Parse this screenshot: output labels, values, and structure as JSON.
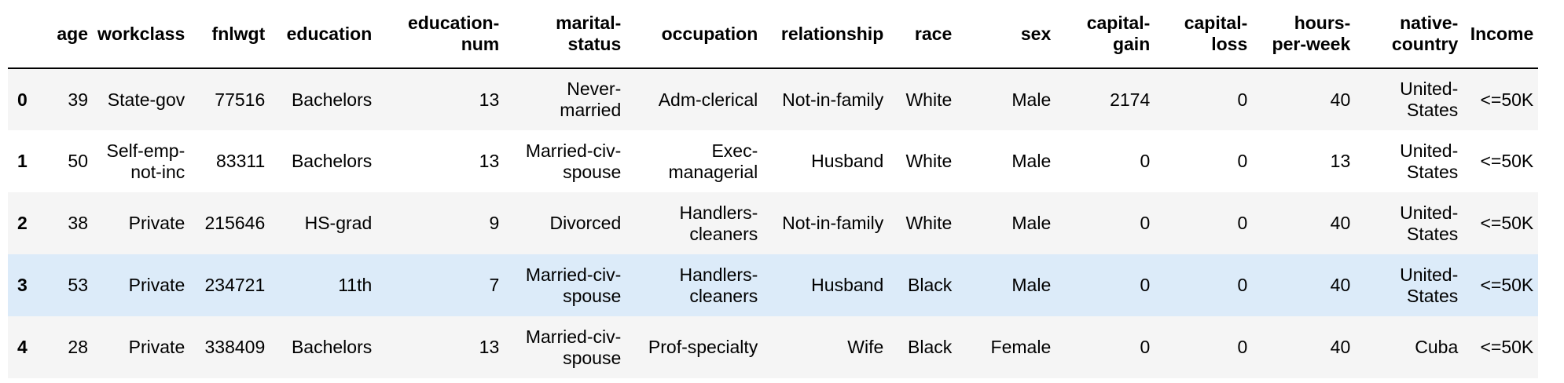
{
  "table": {
    "index_header": "",
    "columns": [
      [
        "age"
      ],
      [
        "workclass"
      ],
      [
        "fnlwgt"
      ],
      [
        "education"
      ],
      [
        "education-",
        "num"
      ],
      [
        "marital-",
        "status"
      ],
      [
        "occupation"
      ],
      [
        "relationship"
      ],
      [
        "race"
      ],
      [
        "sex"
      ],
      [
        "capital-",
        "gain"
      ],
      [
        "capital-",
        "loss"
      ],
      [
        "hours-",
        "per-week"
      ],
      [
        "native-",
        "country"
      ],
      [
        "Income"
      ]
    ],
    "rows": [
      {
        "index": "0",
        "cells": [
          [
            "39"
          ],
          [
            "State-gov"
          ],
          [
            "77516"
          ],
          [
            "Bachelors"
          ],
          [
            "13"
          ],
          [
            "Never-",
            "married"
          ],
          [
            "Adm-clerical"
          ],
          [
            "Not-in-family"
          ],
          [
            "White"
          ],
          [
            "Male"
          ],
          [
            "2174"
          ],
          [
            "0"
          ],
          [
            "40"
          ],
          [
            "United-",
            "States"
          ],
          [
            "<=50K"
          ]
        ]
      },
      {
        "index": "1",
        "cells": [
          [
            "50"
          ],
          [
            "Self-emp-",
            "not-inc"
          ],
          [
            "83311"
          ],
          [
            "Bachelors"
          ],
          [
            "13"
          ],
          [
            "Married-civ-",
            "spouse"
          ],
          [
            "Exec-",
            "managerial"
          ],
          [
            "Husband"
          ],
          [
            "White"
          ],
          [
            "Male"
          ],
          [
            "0"
          ],
          [
            "0"
          ],
          [
            "13"
          ],
          [
            "United-",
            "States"
          ],
          [
            "<=50K"
          ]
        ]
      },
      {
        "index": "2",
        "cells": [
          [
            "38"
          ],
          [
            "Private"
          ],
          [
            "215646"
          ],
          [
            "HS-grad"
          ],
          [
            "9"
          ],
          [
            "Divorced"
          ],
          [
            "Handlers-",
            "cleaners"
          ],
          [
            "Not-in-family"
          ],
          [
            "White"
          ],
          [
            "Male"
          ],
          [
            "0"
          ],
          [
            "0"
          ],
          [
            "40"
          ],
          [
            "United-",
            "States"
          ],
          [
            "<=50K"
          ]
        ]
      },
      {
        "index": "3",
        "hovered": true,
        "cells": [
          [
            "53"
          ],
          [
            "Private"
          ],
          [
            "234721"
          ],
          [
            "11th"
          ],
          [
            "7"
          ],
          [
            "Married-civ-",
            "spouse"
          ],
          [
            "Handlers-",
            "cleaners"
          ],
          [
            "Husband"
          ],
          [
            "Black"
          ],
          [
            "Male"
          ],
          [
            "0"
          ],
          [
            "0"
          ],
          [
            "40"
          ],
          [
            "United-",
            "States"
          ],
          [
            "<=50K"
          ]
        ]
      },
      {
        "index": "4",
        "cells": [
          [
            "28"
          ],
          [
            "Private"
          ],
          [
            "338409"
          ],
          [
            "Bachelors"
          ],
          [
            "13"
          ],
          [
            "Married-civ-",
            "spouse"
          ],
          [
            "Prof-specialty"
          ],
          [
            "Wife"
          ],
          [
            "Black"
          ],
          [
            "Female"
          ],
          [
            "0"
          ],
          [
            "0"
          ],
          [
            "40"
          ],
          [
            "Cuba"
          ],
          [
            "<=50K"
          ]
        ]
      }
    ]
  },
  "colors": {
    "row_striped": "#f5f5f5",
    "row_plain": "#ffffff",
    "row_hover": "#dcebf9",
    "header_rule": "#000000"
  }
}
